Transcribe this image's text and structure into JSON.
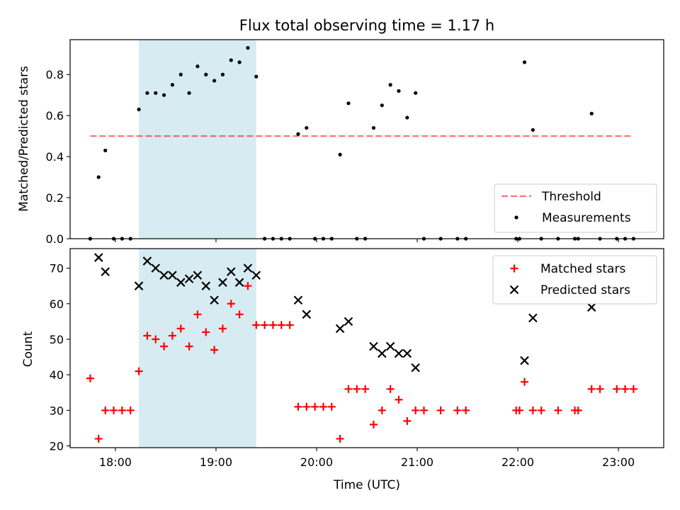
{
  "colors": {
    "shade": "#add8e6",
    "threshold": "#ff0000",
    "matched": "#ff0000",
    "predicted": "#000000",
    "measure": "#000000"
  },
  "chart_data": [
    {
      "type": "scatter",
      "title": "Flux total observing time = 1.17 h",
      "xlabel": "",
      "ylabel": "Matched/Predicted stars",
      "xlim": [
        "17:33",
        "23:27"
      ],
      "ylim": [
        0,
        0.97
      ],
      "yticks": [
        0.0,
        0.2,
        0.4,
        0.6,
        0.8
      ],
      "xticks": [
        "18:00",
        "19:00",
        "20:00",
        "21:00",
        "22:00",
        "23:00"
      ],
      "grid": false,
      "legend_position": "lower-right",
      "shaded_interval": [
        "18:14",
        "19:24"
      ],
      "threshold": {
        "name": "Threshold",
        "y": 0.5,
        "x_range": [
          "17:45",
          "23:08"
        ],
        "style": "dashed"
      },
      "series": [
        {
          "name": "Measurements",
          "x": [
            "17:45",
            "17:50",
            "17:54",
            "17:59",
            "18:04",
            "18:09",
            "18:14",
            "18:19",
            "18:24",
            "18:29",
            "18:34",
            "18:39",
            "18:44",
            "18:49",
            "18:54",
            "18:59",
            "19:04",
            "19:09",
            "19:14",
            "19:19",
            "19:24",
            "19:29",
            "19:34",
            "19:39",
            "19:44",
            "19:49",
            "19:54",
            "19:59",
            "20:04",
            "20:09",
            "20:14",
            "20:19",
            "20:24",
            "20:29",
            "20:34",
            "20:39",
            "20:44",
            "20:49",
            "20:54",
            "20:59",
            "21:04",
            "21:14",
            "21:24",
            "21:29",
            "21:59",
            "22:01",
            "22:04",
            "22:09",
            "22:14",
            "22:24",
            "22:34",
            "22:36",
            "22:44",
            "22:49",
            "22:59",
            "23:04",
            "23:09"
          ],
          "y": [
            0.0,
            0.3,
            0.43,
            0.0,
            0.0,
            0.0,
            0.63,
            0.71,
            0.71,
            0.7,
            0.75,
            0.8,
            0.71,
            0.84,
            0.8,
            0.77,
            0.8,
            0.87,
            0.86,
            0.93,
            0.79,
            0.0,
            0.0,
            0.0,
            0.0,
            0.51,
            0.54,
            0.0,
            0.0,
            0.0,
            0.41,
            0.66,
            0.0,
            0.0,
            0.54,
            0.65,
            0.75,
            0.72,
            0.59,
            0.71,
            0.0,
            0.0,
            0.0,
            0.0,
            0.0,
            0.0,
            0.86,
            0.53,
            0.0,
            0.0,
            0.0,
            0.0,
            0.61,
            0.0,
            0.0,
            0.0,
            0.0
          ]
        }
      ]
    },
    {
      "type": "scatter",
      "title": "",
      "xlabel": "Time (UTC)",
      "ylabel": "Count",
      "xlim": [
        "17:33",
        "23:27"
      ],
      "ylim": [
        19.5,
        75.5
      ],
      "yticks": [
        20,
        30,
        40,
        50,
        60,
        70
      ],
      "xticks": [
        "18:00",
        "19:00",
        "20:00",
        "21:00",
        "22:00",
        "23:00"
      ],
      "grid": false,
      "legend_position": "upper-right",
      "shaded_interval": [
        "18:14",
        "19:24"
      ],
      "series": [
        {
          "name": "Matched stars",
          "marker": "plus",
          "x": [
            "17:45",
            "17:50",
            "17:54",
            "17:59",
            "18:04",
            "18:09",
            "18:14",
            "18:19",
            "18:24",
            "18:29",
            "18:34",
            "18:39",
            "18:44",
            "18:49",
            "18:54",
            "18:59",
            "19:04",
            "19:09",
            "19:14",
            "19:19",
            "19:24",
            "19:29",
            "19:34",
            "19:39",
            "19:44",
            "19:49",
            "19:54",
            "19:59",
            "20:04",
            "20:09",
            "20:14",
            "20:19",
            "20:24",
            "20:29",
            "20:34",
            "20:39",
            "20:44",
            "20:49",
            "20:54",
            "20:59",
            "21:04",
            "21:14",
            "21:24",
            "21:29",
            "21:59",
            "22:01",
            "22:04",
            "22:09",
            "22:14",
            "22:24",
            "22:34",
            "22:36",
            "22:44",
            "22:49",
            "22:59",
            "23:04",
            "23:09"
          ],
          "y": [
            39,
            22,
            30,
            30,
            30,
            30,
            41,
            51,
            50,
            48,
            51,
            53,
            48,
            57,
            52,
            47,
            53,
            60,
            57,
            65,
            54,
            54,
            54,
            54,
            54,
            31,
            31,
            31,
            31,
            31,
            22,
            36,
            36,
            36,
            26,
            30,
            36,
            33,
            27,
            30,
            30,
            30,
            30,
            30,
            30,
            30,
            38,
            30,
            30,
            30,
            30,
            30,
            36,
            36,
            36,
            36,
            36
          ]
        },
        {
          "name": "Predicted stars",
          "marker": "x",
          "x": [
            "17:50",
            "17:54",
            "18:14",
            "18:19",
            "18:24",
            "18:29",
            "18:34",
            "18:39",
            "18:44",
            "18:49",
            "18:54",
            "18:59",
            "19:04",
            "19:09",
            "19:14",
            "19:19",
            "19:24",
            "19:49",
            "19:54",
            "20:14",
            "20:19",
            "20:34",
            "20:39",
            "20:44",
            "20:49",
            "20:54",
            "20:59",
            "22:04",
            "22:09",
            "22:44"
          ],
          "y": [
            73,
            69,
            65,
            72,
            70,
            68,
            68,
            66,
            67,
            68,
            65,
            61,
            66,
            69,
            66,
            70,
            68,
            61,
            57,
            53,
            55,
            48,
            46,
            48,
            46,
            46,
            42,
            44,
            56,
            59
          ]
        }
      ]
    }
  ]
}
